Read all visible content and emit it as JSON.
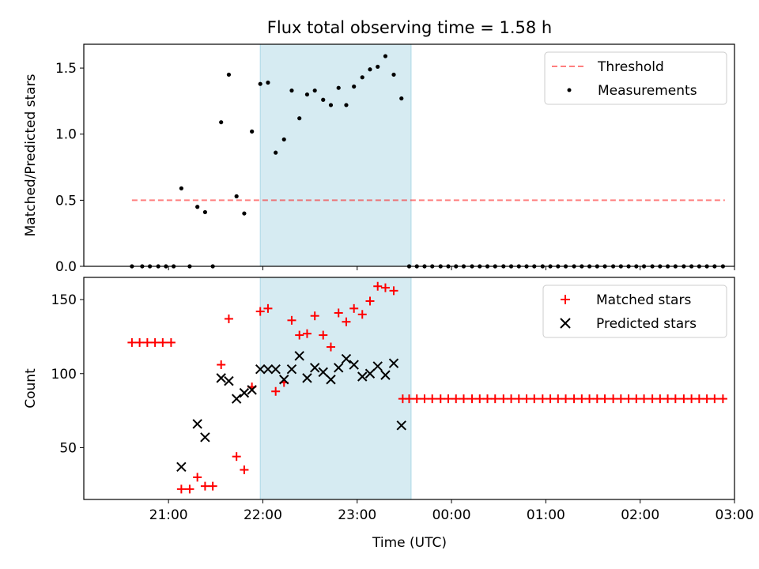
{
  "title": "Flux total observing time = 1.58 h",
  "colors": {
    "shade": "#add8e6",
    "threshold": "#ff0000",
    "measurement": "#000000",
    "matched": "#ff0000",
    "predicted": "#000000"
  },
  "chart_data": [
    {
      "type": "scatter",
      "ylabel": "Matched/Predicted stars",
      "ylim": [
        0,
        1.68
      ],
      "yticks": [
        0.0,
        0.5,
        1.0,
        1.5
      ],
      "ytick_labels": [
        "0.0",
        "0.5",
        "1.0",
        "1.5"
      ],
      "xlim": [
        -27.7,
        73.7
      ],
      "shaded_x_range": [
        -0.2,
        23.3
      ],
      "legend": {
        "placement": "top-right",
        "entries": [
          "Threshold",
          "Measurements"
        ]
      },
      "threshold": {
        "name": "Threshold",
        "y": 0.5,
        "x": [
          -20.2,
          72.2
        ],
        "style": "dashed"
      },
      "series": [
        {
          "name": "Measurements",
          "points": [
            [
              -20.2,
              0
            ],
            [
              -18.6,
              0
            ],
            [
              -17.4,
              0
            ],
            [
              -16.1,
              0
            ],
            [
              -14.9,
              0
            ],
            [
              -13.7,
              0
            ],
            [
              -12.5,
              0.59
            ],
            [
              -11.2,
              0
            ],
            [
              -10.0,
              0.45
            ],
            [
              -8.8,
              0.41
            ],
            [
              -7.6,
              0
            ],
            [
              -6.3,
              1.09
            ],
            [
              -5.1,
              1.45
            ],
            [
              -3.9,
              0.53
            ],
            [
              -2.7,
              0.4
            ],
            [
              -1.5,
              1.02
            ],
            [
              -0.2,
              1.38
            ],
            [
              1.0,
              1.39
            ],
            [
              2.2,
              0.86
            ],
            [
              3.5,
              0.96
            ],
            [
              4.7,
              1.33
            ],
            [
              5.9,
              1.12
            ],
            [
              7.1,
              1.3
            ],
            [
              8.3,
              1.33
            ],
            [
              9.6,
              1.26
            ],
            [
              10.8,
              1.22
            ],
            [
              12.0,
              1.35
            ],
            [
              13.2,
              1.22
            ],
            [
              14.4,
              1.36
            ],
            [
              15.7,
              1.43
            ],
            [
              16.9,
              1.49
            ],
            [
              18.1,
              1.51
            ],
            [
              19.3,
              1.59
            ],
            [
              20.6,
              1.45
            ],
            [
              21.8,
              1.27
            ],
            [
              23.0,
              0
            ],
            [
              24.2,
              0
            ],
            [
              25.4,
              0
            ],
            [
              26.6,
              0
            ],
            [
              27.9,
              0
            ],
            [
              29.1,
              0
            ],
            [
              30.3,
              0
            ],
            [
              31.5,
              0
            ],
            [
              32.8,
              0
            ],
            [
              34.0,
              0
            ],
            [
              35.2,
              0
            ],
            [
              36.4,
              0
            ],
            [
              37.7,
              0
            ],
            [
              38.9,
              0
            ],
            [
              40.1,
              0
            ],
            [
              41.3,
              0
            ],
            [
              42.5,
              0
            ],
            [
              43.8,
              0
            ],
            [
              45.0,
              0
            ],
            [
              46.2,
              0
            ],
            [
              47.4,
              0
            ],
            [
              48.7,
              0
            ],
            [
              49.9,
              0
            ],
            [
              51.1,
              0
            ],
            [
              52.3,
              0
            ],
            [
              53.5,
              0
            ],
            [
              54.8,
              0
            ],
            [
              56.0,
              0
            ],
            [
              57.2,
              0
            ],
            [
              58.4,
              0
            ],
            [
              59.6,
              0
            ],
            [
              60.9,
              0
            ],
            [
              62.1,
              0
            ],
            [
              63.3,
              0
            ],
            [
              64.5,
              0
            ],
            [
              65.8,
              0
            ],
            [
              67.0,
              0
            ],
            [
              68.2,
              0
            ],
            [
              69.4,
              0
            ],
            [
              70.6,
              0
            ],
            [
              71.9,
              0
            ]
          ]
        }
      ]
    },
    {
      "type": "scatter",
      "title": "",
      "xlabel": "Time (UTC)",
      "ylabel": "Count",
      "ylim": [
        15,
        165
      ],
      "yticks": [
        50,
        100,
        150
      ],
      "ytick_labels": [
        "50",
        "100",
        "150"
      ],
      "xlim": [
        -27.7,
        73.7
      ],
      "shaded_x_range": [
        -0.2,
        23.3
      ],
      "xticks": [
        -14.5,
        0.2,
        14.9,
        29.6,
        44.3,
        59.0,
        73.7
      ],
      "xtick_labels": [
        "21:00",
        "22:00",
        "23:00",
        "00:00",
        "01:00",
        "02:00",
        "03:00"
      ],
      "legend": {
        "placement": "top-right",
        "entries": [
          "Matched stars",
          "Predicted stars"
        ]
      },
      "series": [
        {
          "name": "Matched stars",
          "marker": "plus",
          "points": [
            [
              -20.2,
              121
            ],
            [
              -19.0,
              121
            ],
            [
              -17.8,
              121
            ],
            [
              -16.6,
              121
            ],
            [
              -15.4,
              121
            ],
            [
              -14.1,
              121
            ],
            [
              -12.5,
              22
            ],
            [
              -11.2,
              22
            ],
            [
              -10.0,
              30
            ],
            [
              -8.8,
              24
            ],
            [
              -7.6,
              24
            ],
            [
              -6.3,
              106
            ],
            [
              -5.1,
              137
            ],
            [
              -3.9,
              44
            ],
            [
              -2.7,
              35
            ],
            [
              -1.5,
              91
            ],
            [
              -0.2,
              142
            ],
            [
              1.0,
              144
            ],
            [
              2.2,
              88
            ],
            [
              3.5,
              94
            ],
            [
              4.7,
              136
            ],
            [
              5.9,
              126
            ],
            [
              7.1,
              127
            ],
            [
              8.3,
              139
            ],
            [
              9.6,
              126
            ],
            [
              10.8,
              118
            ],
            [
              12.0,
              141
            ],
            [
              13.2,
              135
            ],
            [
              14.4,
              144
            ],
            [
              15.7,
              140
            ],
            [
              16.9,
              149
            ],
            [
              18.1,
              159
            ],
            [
              19.3,
              158
            ],
            [
              20.6,
              156
            ],
            [
              22.0,
              83
            ],
            [
              23.0,
              83
            ],
            [
              24.2,
              83
            ],
            [
              25.4,
              83
            ],
            [
              26.6,
              83
            ],
            [
              27.9,
              83
            ],
            [
              29.1,
              83
            ],
            [
              30.3,
              83
            ],
            [
              31.5,
              83
            ],
            [
              32.8,
              83
            ],
            [
              34.0,
              83
            ],
            [
              35.2,
              83
            ],
            [
              36.4,
              83
            ],
            [
              37.7,
              83
            ],
            [
              38.9,
              83
            ],
            [
              40.1,
              83
            ],
            [
              41.3,
              83
            ],
            [
              42.5,
              83
            ],
            [
              43.8,
              83
            ],
            [
              45.0,
              83
            ],
            [
              46.2,
              83
            ],
            [
              47.4,
              83
            ],
            [
              48.7,
              83
            ],
            [
              49.9,
              83
            ],
            [
              51.1,
              83
            ],
            [
              52.3,
              83
            ],
            [
              53.5,
              83
            ],
            [
              54.8,
              83
            ],
            [
              56.0,
              83
            ],
            [
              57.2,
              83
            ],
            [
              58.4,
              83
            ],
            [
              59.6,
              83
            ],
            [
              60.9,
              83
            ],
            [
              62.1,
              83
            ],
            [
              63.3,
              83
            ],
            [
              64.5,
              83
            ],
            [
              65.8,
              83
            ],
            [
              67.0,
              83
            ],
            [
              68.2,
              83
            ],
            [
              69.4,
              83
            ],
            [
              70.6,
              83
            ],
            [
              71.9,
              83
            ]
          ]
        },
        {
          "name": "Predicted stars",
          "marker": "x",
          "points": [
            [
              -12.5,
              37
            ],
            [
              -10.0,
              66
            ],
            [
              -8.8,
              57
            ],
            [
              -6.3,
              97
            ],
            [
              -5.1,
              95
            ],
            [
              -3.9,
              83
            ],
            [
              -2.7,
              87
            ],
            [
              -1.5,
              89
            ],
            [
              -0.2,
              103
            ],
            [
              1.0,
              103
            ],
            [
              2.2,
              103
            ],
            [
              3.5,
              96
            ],
            [
              4.7,
              103
            ],
            [
              5.9,
              112
            ],
            [
              7.1,
              97
            ],
            [
              8.3,
              104
            ],
            [
              9.6,
              101
            ],
            [
              10.8,
              96
            ],
            [
              12.0,
              104
            ],
            [
              13.2,
              110
            ],
            [
              14.4,
              106
            ],
            [
              15.7,
              98
            ],
            [
              16.9,
              100
            ],
            [
              18.1,
              105
            ],
            [
              19.3,
              99
            ],
            [
              20.6,
              107
            ],
            [
              21.8,
              65
            ]
          ]
        }
      ]
    }
  ]
}
